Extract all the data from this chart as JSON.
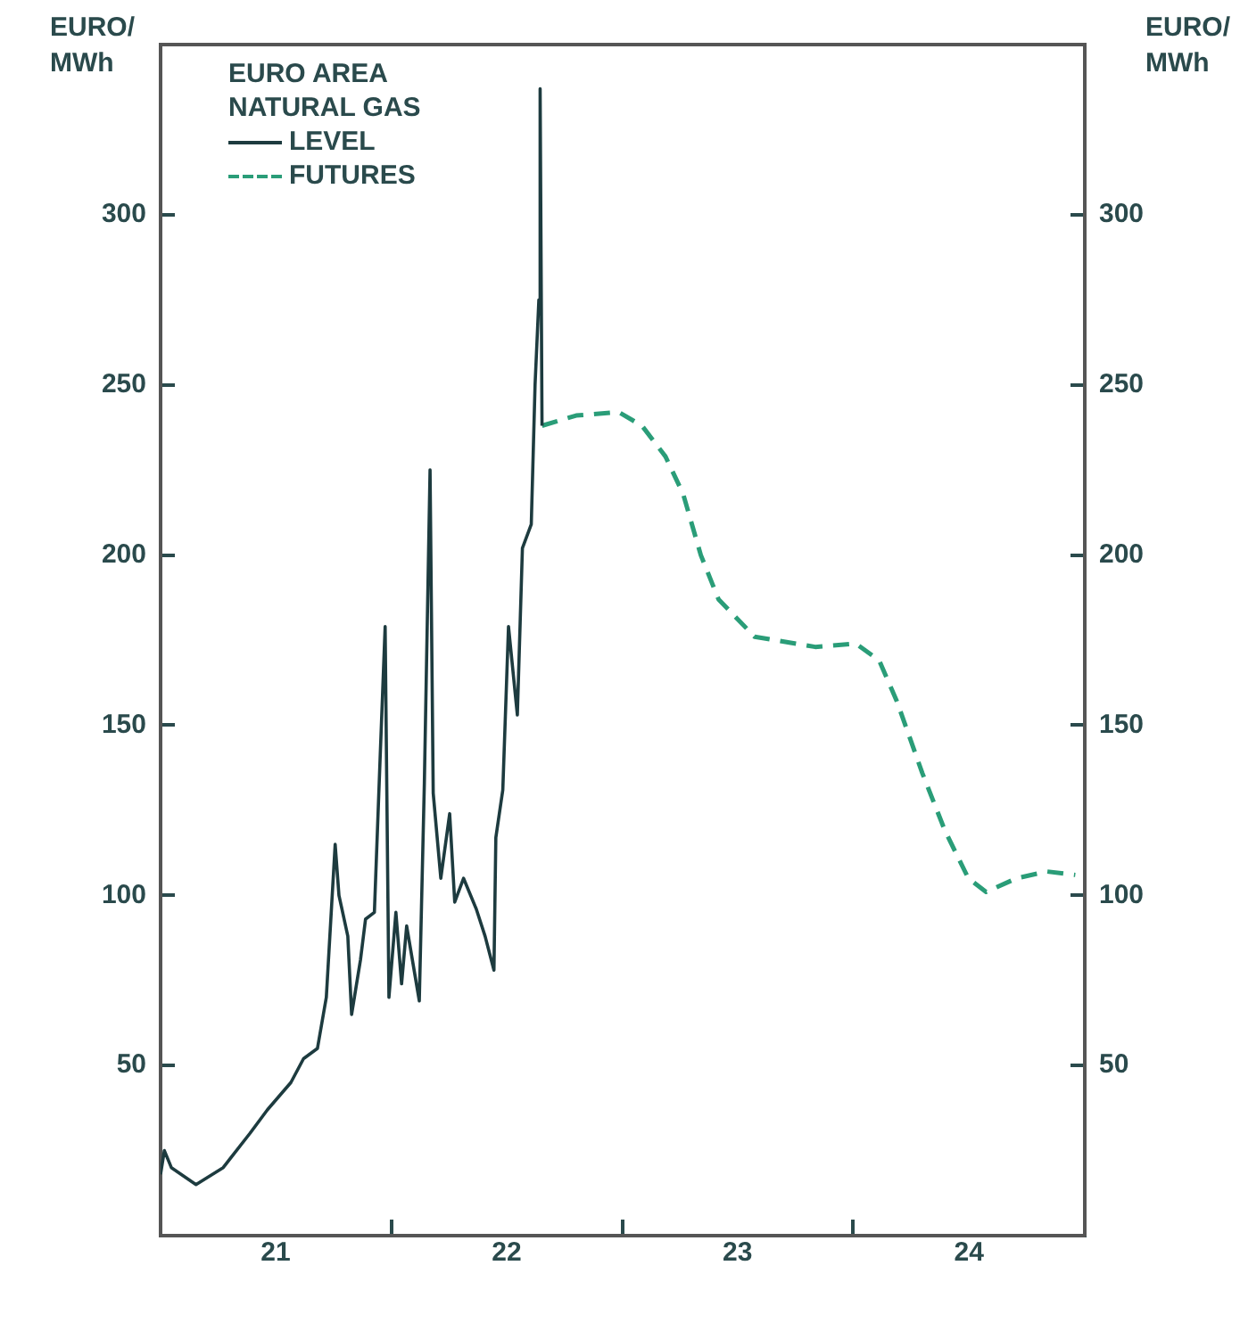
{
  "chart_data": {
    "type": "line",
    "ylabel": "EURO/ MWh",
    "y2label": "EURO/ MWh",
    "legend_title": "EURO AREA NATURAL GAS",
    "legend": "top left",
    "grid": false,
    "xlim": [
      "2021-01-01",
      "2025-01-01"
    ],
    "xticks": [
      {
        "value": "2021-01-01",
        "label": null
      },
      {
        "value": "2021-07-02",
        "label": "21"
      },
      {
        "value": "2022-01-01",
        "label": null
      },
      {
        "value": "2022-07-02",
        "label": "22"
      },
      {
        "value": "2023-01-01",
        "label": null
      },
      {
        "value": "2023-07-02",
        "label": "23"
      },
      {
        "value": "2024-01-01",
        "label": null
      },
      {
        "value": "2024-07-02",
        "label": "24"
      },
      {
        "value": "2025-01-01",
        "label": null
      }
    ],
    "ylim": [
      0,
      350
    ],
    "yticks": [
      50,
      100,
      150,
      200,
      250,
      300
    ],
    "y2lim": [
      0,
      350
    ],
    "y2ticks": [
      50,
      100,
      150,
      200,
      250,
      300
    ],
    "series": [
      {
        "name": "LEVEL",
        "color": "#1d3b3f",
        "line_style": "solid",
        "x": [
          "2021-01-01",
          "2021-01-07",
          "2021-01-18",
          "2021-02-26",
          "2021-04-10",
          "2021-05-22",
          "2021-06-19",
          "2021-07-26",
          "2021-08-15",
          "2021-09-06",
          "2021-09-20",
          "2021-10-04",
          "2021-10-10",
          "2021-10-24",
          "2021-10-30",
          "2021-11-13",
          "2021-11-21",
          "2021-12-05",
          "2021-12-14",
          "2021-12-22",
          "2021-12-28",
          "2022-01-08",
          "2022-01-17",
          "2022-01-25",
          "2022-02-14",
          "2022-02-22",
          "2022-03-03",
          "2022-03-08",
          "2022-03-20",
          "2022-04-03",
          "2022-04-11",
          "2022-04-25",
          "2022-05-15",
          "2022-05-29",
          "2022-06-12",
          "2022-06-15",
          "2022-06-26",
          "2022-07-05",
          "2022-07-19",
          "2022-07-27",
          "2022-08-10",
          "2022-08-16",
          "2022-08-22",
          "2022-08-24",
          "2022-08-27"
        ],
        "values": [
          18,
          25,
          20,
          15,
          20,
          30,
          37,
          45,
          52,
          55,
          70,
          115,
          100,
          88,
          65,
          81,
          93,
          95,
          140,
          179,
          70,
          95,
          74,
          91,
          69,
          133,
          225,
          130,
          105,
          124,
          98,
          105,
          96,
          88,
          78,
          117,
          131,
          179,
          153,
          202,
          209,
          250,
          275,
          337,
          238
        ]
      },
      {
        "name": "FUTURES",
        "color": "#2a9d78",
        "line_style": "dashed",
        "x": [
          "2022-08-27",
          "2022-10-20",
          "2022-12-26",
          "2023-02-01",
          "2023-03-10",
          "2023-04-07",
          "2023-05-05",
          "2023-06-02",
          "2023-07-29",
          "2023-11-02",
          "2024-01-05",
          "2024-02-11",
          "2024-03-10",
          "2024-04-19",
          "2024-05-25",
          "2024-07-01",
          "2024-07-29",
          "2024-09-15",
          "2024-11-02",
          "2024-12-17"
        ],
        "values": [
          238,
          241,
          242,
          238,
          229,
          218,
          200,
          187,
          176,
          173,
          174,
          169,
          157,
          136,
          119,
          105,
          101,
          105,
          107,
          106
        ]
      }
    ]
  }
}
